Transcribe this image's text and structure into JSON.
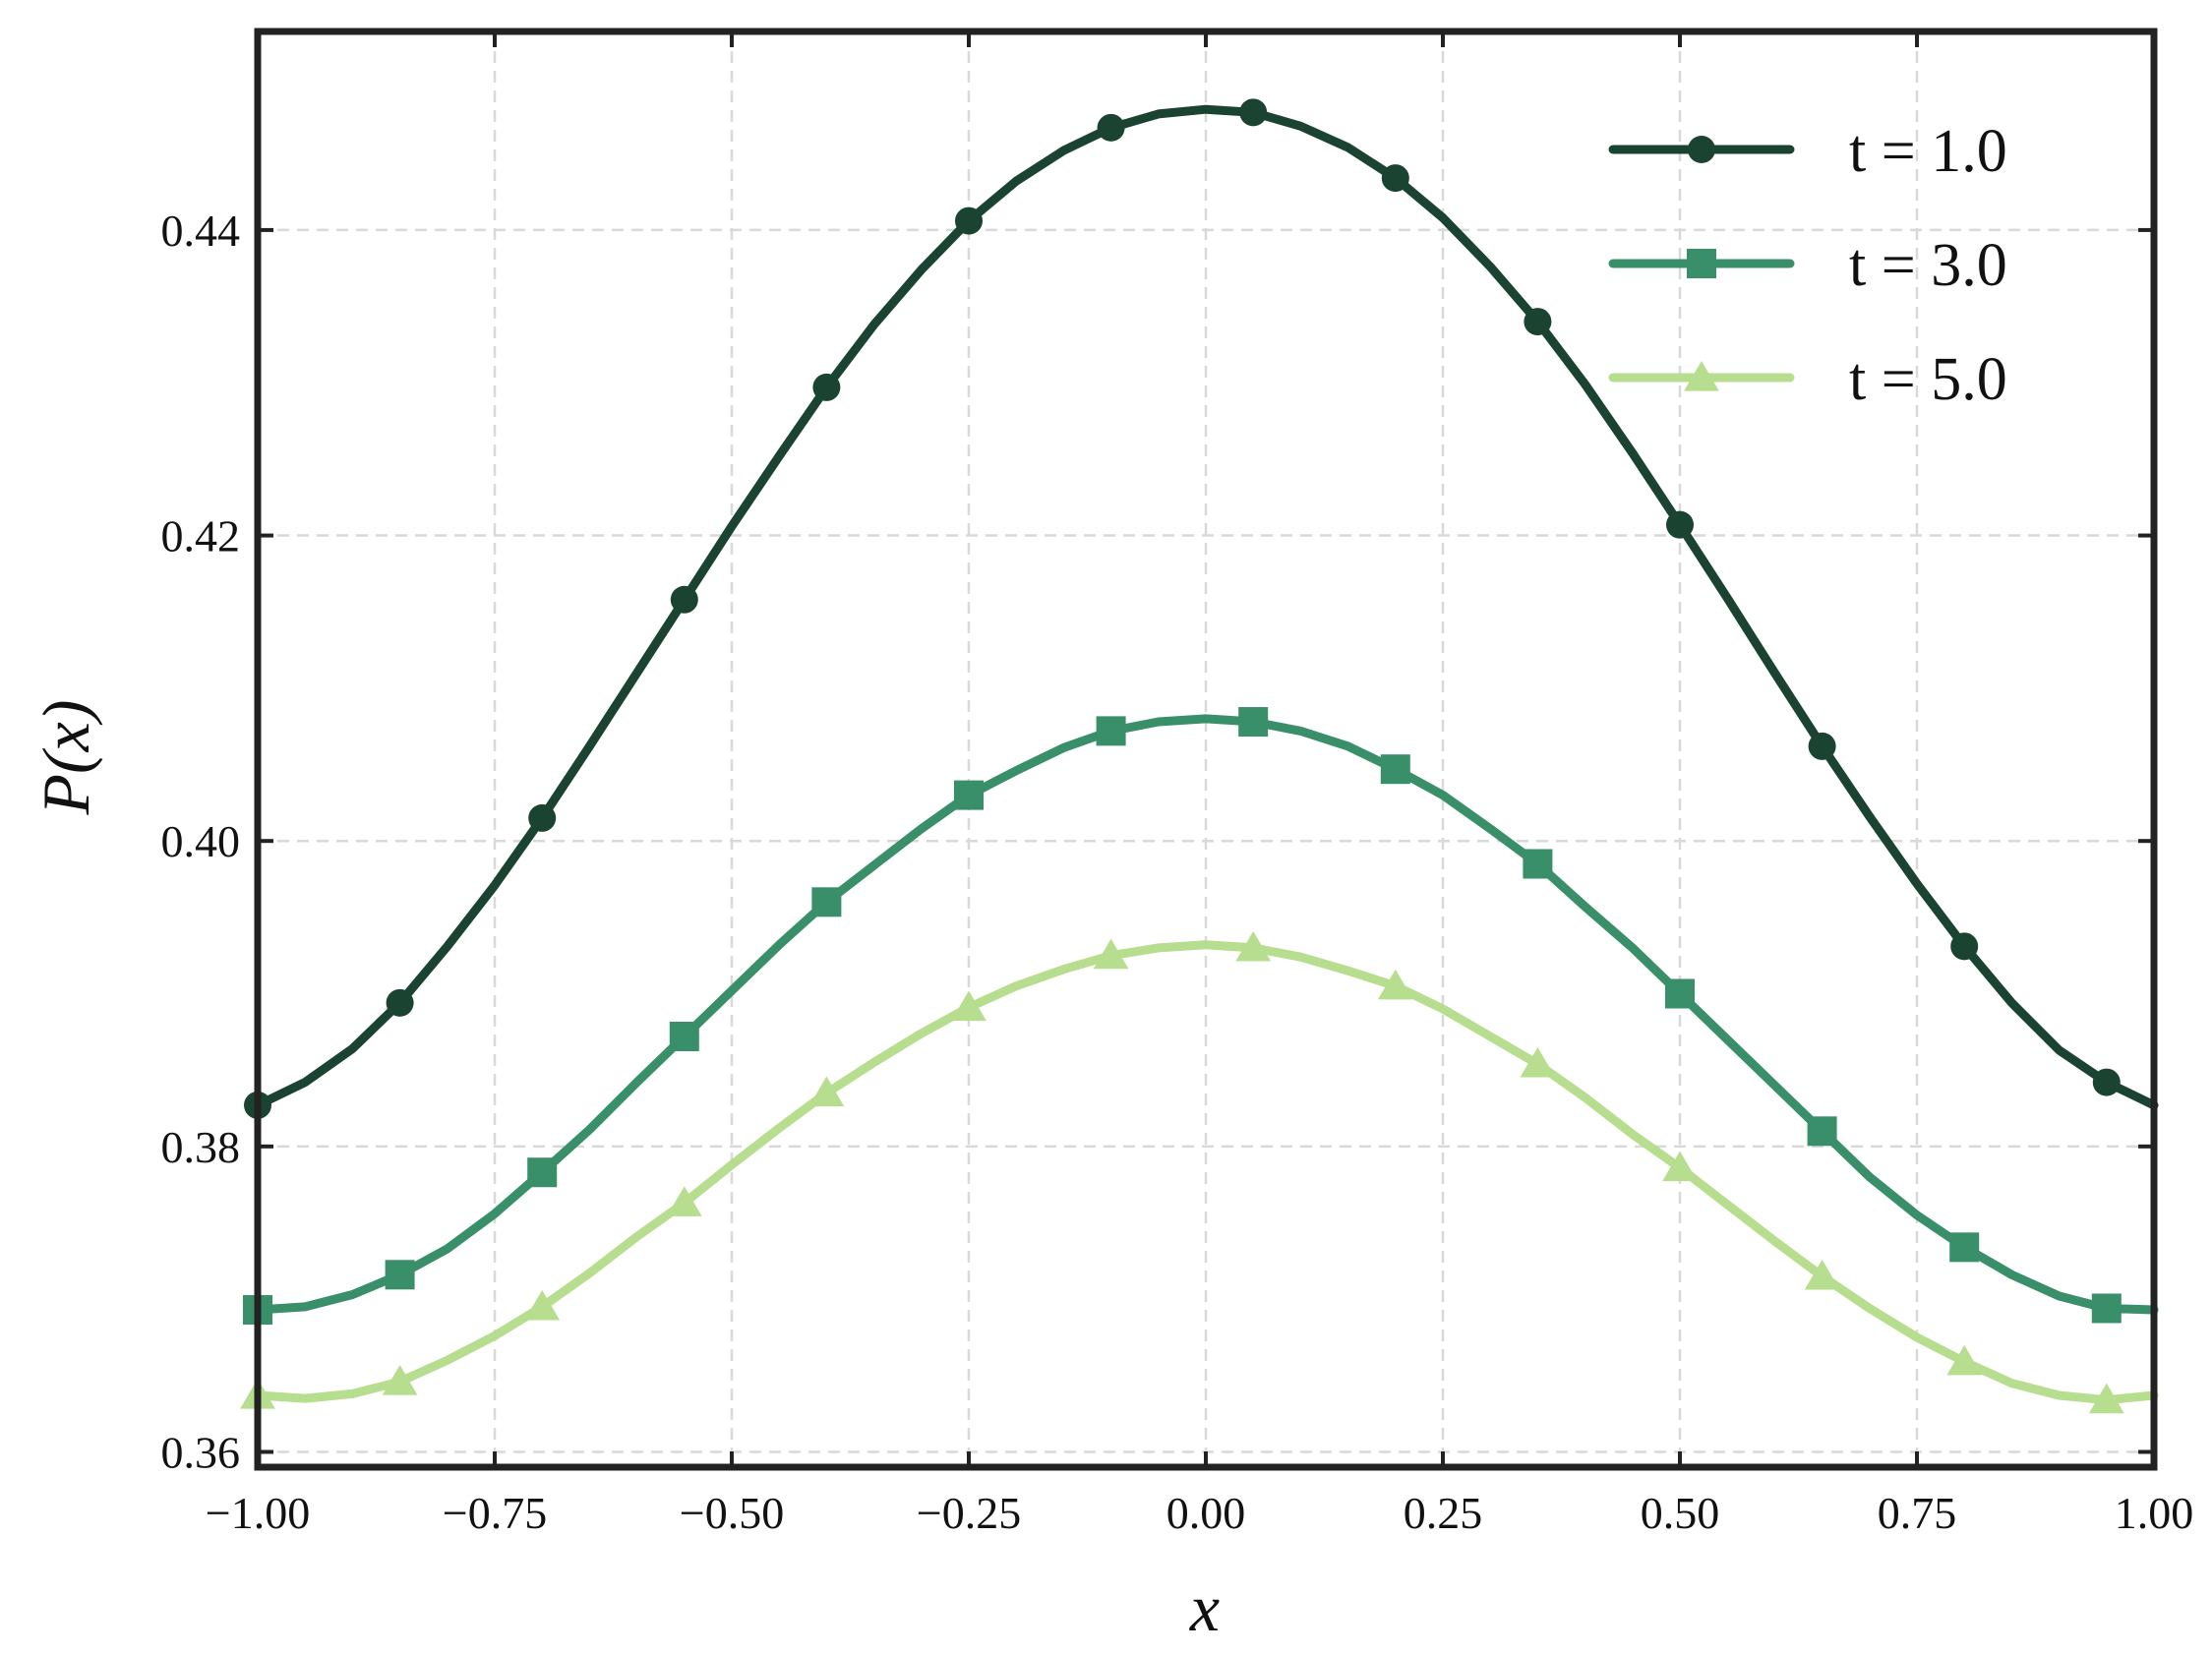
{
  "chart_data": {
    "type": "line",
    "xlabel": "x",
    "ylabel": "P(x)",
    "xlim": [
      -1.0,
      1.0
    ],
    "ylim": [
      0.359,
      0.453
    ],
    "xticks": [
      -1.0,
      -0.75,
      -0.5,
      -0.25,
      0.0,
      0.25,
      0.5,
      0.75,
      1.0
    ],
    "xtick_labels": [
      "−1.00",
      "−0.75",
      "−0.50",
      "−0.25",
      "0.00",
      "0.25",
      "0.50",
      "0.75",
      "1.00"
    ],
    "yticks": [
      0.36,
      0.38,
      0.4,
      0.42,
      0.44
    ],
    "ytick_labels": [
      "0.36",
      "0.38",
      "0.40",
      "0.42",
      "0.44"
    ],
    "grid": true,
    "legend_position": "top-right",
    "series": [
      {
        "name": "t = 1.0",
        "color": "#1b4332",
        "marker": "circle",
        "line": {
          "x": [
            -1.0,
            -0.95,
            -0.9,
            -0.85,
            -0.8,
            -0.75,
            -0.7,
            -0.65,
            -0.6,
            -0.55,
            -0.5,
            -0.45,
            -0.4,
            -0.35,
            -0.3,
            -0.25,
            -0.2,
            -0.15,
            -0.1,
            -0.05,
            0.0,
            0.05,
            0.1,
            0.15,
            0.2,
            0.25,
            0.3,
            0.35,
            0.4,
            0.45,
            0.5,
            0.55,
            0.6,
            0.65,
            0.7,
            0.75,
            0.8,
            0.85,
            0.9,
            0.95,
            1.0
          ],
          "y": [
            0.3827,
            0.3842,
            0.3864,
            0.3894,
            0.3931,
            0.3971,
            0.4015,
            0.4062,
            0.411,
            0.4158,
            0.4206,
            0.4252,
            0.4297,
            0.4338,
            0.4374,
            0.4406,
            0.4432,
            0.4452,
            0.4467,
            0.4476,
            0.4479,
            0.4477,
            0.4468,
            0.4454,
            0.4434,
            0.4408,
            0.4376,
            0.434,
            0.4299,
            0.4254,
            0.4207,
            0.4159,
            0.411,
            0.4062,
            0.4016,
            0.3972,
            0.3931,
            0.3894,
            0.3863,
            0.3842,
            0.3827
          ]
        },
        "markers": {
          "x": [
            -1.0,
            -0.85,
            -0.7,
            -0.55,
            -0.4,
            -0.25,
            -0.1,
            0.05,
            0.2,
            0.35,
            0.5,
            0.65,
            0.8,
            0.95
          ],
          "y": [
            0.3827,
            0.3894,
            0.4015,
            0.4158,
            0.4297,
            0.4406,
            0.4467,
            0.4477,
            0.4434,
            0.434,
            0.4207,
            0.4062,
            0.3931,
            0.3842
          ]
        }
      },
      {
        "name": "t = 3.0",
        "color": "#3a8f6b",
        "marker": "square",
        "line": {
          "x": [
            -1.0,
            -0.95,
            -0.9,
            -0.85,
            -0.8,
            -0.75,
            -0.7,
            -0.65,
            -0.6,
            -0.55,
            -0.5,
            -0.45,
            -0.4,
            -0.35,
            -0.3,
            -0.25,
            -0.2,
            -0.15,
            -0.1,
            -0.05,
            0.0,
            0.05,
            0.1,
            0.15,
            0.2,
            0.25,
            0.3,
            0.35,
            0.4,
            0.45,
            0.5,
            0.55,
            0.6,
            0.65,
            0.7,
            0.75,
            0.8,
            0.85,
            0.9,
            0.95,
            1.0
          ],
          "y": [
            0.3693,
            0.3695,
            0.3703,
            0.3716,
            0.3733,
            0.3756,
            0.3783,
            0.3811,
            0.3842,
            0.3872,
            0.3902,
            0.3932,
            0.396,
            0.3984,
            0.4008,
            0.403,
            0.4046,
            0.4061,
            0.4072,
            0.4078,
            0.408,
            0.4078,
            0.4072,
            0.4062,
            0.4047,
            0.403,
            0.4008,
            0.3985,
            0.3957,
            0.393,
            0.39,
            0.387,
            0.384,
            0.381,
            0.378,
            0.3755,
            0.3734,
            0.3716,
            0.3702,
            0.3694,
            0.3693
          ]
        },
        "markers": {
          "x": [
            -1.0,
            -0.85,
            -0.7,
            -0.55,
            -0.4,
            -0.25,
            -0.1,
            0.05,
            0.2,
            0.35,
            0.5,
            0.65,
            0.8,
            0.95
          ],
          "y": [
            0.3693,
            0.3716,
            0.3783,
            0.3872,
            0.396,
            0.403,
            0.4072,
            0.4078,
            0.4047,
            0.3985,
            0.39,
            0.381,
            0.3734,
            0.3694
          ]
        }
      },
      {
        "name": "t = 5.0",
        "color": "#b7dd8e",
        "marker": "triangle",
        "line": {
          "x": [
            -1.0,
            -0.95,
            -0.9,
            -0.85,
            -0.8,
            -0.75,
            -0.7,
            -0.65,
            -0.6,
            -0.55,
            -0.5,
            -0.45,
            -0.4,
            -0.35,
            -0.3,
            -0.25,
            -0.2,
            -0.15,
            -0.1,
            -0.05,
            0.0,
            0.05,
            0.1,
            0.15,
            0.2,
            0.25,
            0.3,
            0.35,
            0.4,
            0.45,
            0.5,
            0.55,
            0.6,
            0.65,
            0.7,
            0.75,
            0.8,
            0.85,
            0.9,
            0.95,
            1.0
          ],
          "y": [
            0.3637,
            0.3635,
            0.3638,
            0.3646,
            0.366,
            0.3676,
            0.3695,
            0.3717,
            0.3741,
            0.3763,
            0.3788,
            0.3812,
            0.3835,
            0.3855,
            0.3874,
            0.3891,
            0.3905,
            0.3916,
            0.3925,
            0.393,
            0.3932,
            0.393,
            0.3924,
            0.3915,
            0.3905,
            0.389,
            0.3872,
            0.3854,
            0.3832,
            0.3808,
            0.3786,
            0.3762,
            0.3738,
            0.3715,
            0.3694,
            0.3675,
            0.3659,
            0.3645,
            0.3637,
            0.3634,
            0.3637
          ]
        },
        "markers": {
          "x": [
            -1.0,
            -0.85,
            -0.7,
            -0.55,
            -0.4,
            -0.25,
            -0.1,
            0.05,
            0.2,
            0.35,
            0.5,
            0.65,
            0.8,
            0.95
          ],
          "y": [
            0.3637,
            0.3646,
            0.3695,
            0.3763,
            0.3835,
            0.3891,
            0.3925,
            0.393,
            0.3905,
            0.3854,
            0.3786,
            0.3715,
            0.3659,
            0.3634
          ]
        }
      }
    ]
  }
}
